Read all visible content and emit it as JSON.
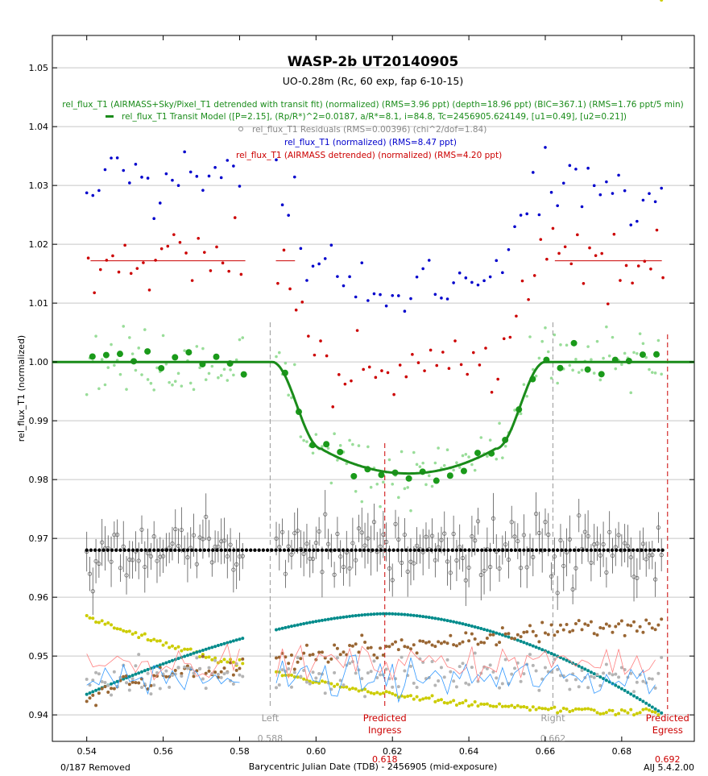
{
  "chart_data": {
    "type": "scatter",
    "title": "WASP-2b UT20140905",
    "subtitle": "UO-0.28m (Rc, 60 exp, fap 6-10-15)",
    "xlabel": "Barycentric Julian Date (TDB) - 2456905 (mid-exposure)",
    "ylabel": "rel_flux_T1 (normalized)",
    "xlim": [
      0.531,
      0.699
    ],
    "ylim": [
      0.9355,
      1.0555
    ],
    "x_ticks": [
      "0.54",
      "0.56",
      "0.58",
      "0.60",
      "0.62",
      "0.64",
      "0.66",
      "0.68"
    ],
    "x_tick_values": [
      0.54,
      0.56,
      0.58,
      0.6,
      0.62,
      0.64,
      0.66,
      0.68
    ],
    "y_ticks": [
      "0.94",
      "0.95",
      "0.96",
      "0.97",
      "0.98",
      "0.99",
      "1.00",
      "1.01",
      "1.02",
      "1.03",
      "1.04",
      "1.05"
    ],
    "y_tick_values": [
      0.94,
      0.95,
      0.96,
      0.97,
      0.98,
      0.99,
      1.0,
      1.01,
      1.02,
      1.03,
      1.04,
      1.05
    ],
    "grid": "horizontal",
    "legend_position": "top",
    "legend": [
      {
        "text": "rel_flux_T1 (AIRMASS+Sky/Pixel_T1 detrended with transit fit) (normalized) (RMS=3.96 ppt) (depth=18.96 ppt) (BIC=367.1) (RMS=1.76 ppt/5 min)",
        "color": "#1a8c1a"
      },
      {
        "text": "rel_flux_T1 Transit Model ([P=2.15], (Rp/R*)^2=0.0187, a/R*=8.1, i=84.8, Tc=2456905.624149, [u1=0.49], [u2=0.21])",
        "color": "#1a8c1a",
        "marker": "line"
      },
      {
        "text": "rel_flux_T1 Residuals (RMS=0.00396) (chi^2/dof=1.84)",
        "color": "#888888",
        "marker": "circle"
      },
      {
        "text": "rel_flux_T1 (normalized) (RMS=8.47 ppt)",
        "color": "#0000cc"
      },
      {
        "text": "rel_flux_T1 (AIRMASS detrended) (normalized) (RMS=4.20 ppt)",
        "color": "#cc0000"
      }
    ],
    "model": {
      "t_c": 0.624149,
      "t1": 0.5885,
      "t2": 0.6015,
      "t3": 0.647,
      "t4": 0.66,
      "baseline": 1.0,
      "depth": 0.01896,
      "color": "#1a8c1a"
    },
    "markers": [
      {
        "label": "Left",
        "value": "0.588",
        "x": 0.588,
        "color": "#999999"
      },
      {
        "label": "Predicted Ingress",
        "value": "0.618",
        "x": 0.618,
        "color": "#cc0000"
      },
      {
        "label": "Right",
        "value": "0.662",
        "x": 0.662,
        "color": "#999999"
      },
      {
        "label": "Predicted Egress",
        "value": "0.692",
        "x": 0.692,
        "color": "#cc0000"
      }
    ],
    "series": [
      {
        "name": "rel_flux_T1 (normalized)",
        "color": "#0000cc",
        "kind": "raw_blue"
      },
      {
        "name": "rel_flux_T1 (AIRMASS detrended) (normalized)",
        "color": "#cc0000",
        "kind": "raw_red",
        "level": 1.0172
      },
      {
        "name": "rel_flux_T1 (AIRMASS+Sky/Pixel_T1 detrended with transit fit) (normalized)",
        "color": "#1a8c1a",
        "kind": "detrended"
      },
      {
        "name": "rel_flux_T1 Residuals",
        "color": "#888888",
        "kind": "residuals",
        "offset": 0.968
      }
    ],
    "aux_series": [
      {
        "color": "#cccc00",
        "kind": "yellow",
        "start": 0.9565,
        "end": 0.9405
      },
      {
        "color": "#008b8b",
        "kind": "teal",
        "start": 0.9435,
        "peak": 0.9572,
        "peak_x": 0.618,
        "end": 0.9405
      },
      {
        "color": "#996633",
        "kind": "brown",
        "start": 0.9415,
        "end": 0.9555
      }
    ]
  },
  "footer": {
    "removed": "0/187 Removed",
    "version": "AIJ 5.4.2.00"
  }
}
